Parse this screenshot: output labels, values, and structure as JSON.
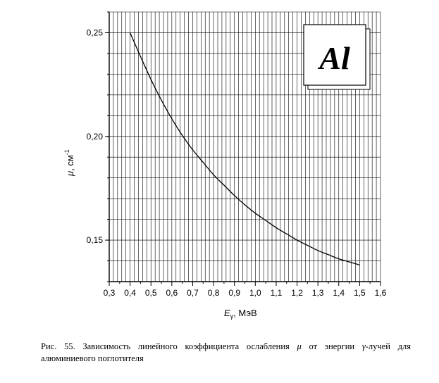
{
  "chart_data": {
    "type": "line",
    "title": "",
    "xlabel": "E",
    "xlabel_subscript": "γ",
    "xlabel_unit": ", МэВ",
    "ylabel": "μ",
    "ylabel_unit": ", см",
    "ylabel_exp": "-1",
    "xlim": [
      0.3,
      1.6
    ],
    "ylim": [
      0.13,
      0.26
    ],
    "x_ticks": [
      "0,3",
      "0,4",
      "0,5",
      "0,6",
      "0,7",
      "0,8",
      "0,9",
      "1,0",
      "1,1",
      "1,2",
      "1,3",
      "1,4",
      "1,5",
      "1,6"
    ],
    "y_ticks": [
      "0,15",
      "0,20",
      "0,25"
    ],
    "grid": true,
    "badge": "Al",
    "series": [
      {
        "x": [
          0.4,
          0.45,
          0.5,
          0.55,
          0.6,
          0.65,
          0.7,
          0.75,
          0.8,
          0.85,
          0.9,
          0.95,
          1.0,
          1.05,
          1.1,
          1.15,
          1.2,
          1.25,
          1.3,
          1.35,
          1.4,
          1.45,
          1.5
        ],
        "y": [
          0.25,
          0.2385,
          0.2275,
          0.2175,
          0.2085,
          0.2005,
          0.1935,
          0.1875,
          0.1815,
          0.1765,
          0.1715,
          0.167,
          0.163,
          0.1595,
          0.156,
          0.153,
          0.15,
          0.1475,
          0.145,
          0.143,
          0.141,
          0.1395,
          0.138
        ]
      }
    ]
  },
  "caption": {
    "prefix": "Рис. 55. Зависимость линейного коэффициента ослабления ",
    "mu": "μ",
    "middle": " от энергии ",
    "gamma": "γ",
    "suffix": "-лучей для алюминиевого поглотителя"
  }
}
